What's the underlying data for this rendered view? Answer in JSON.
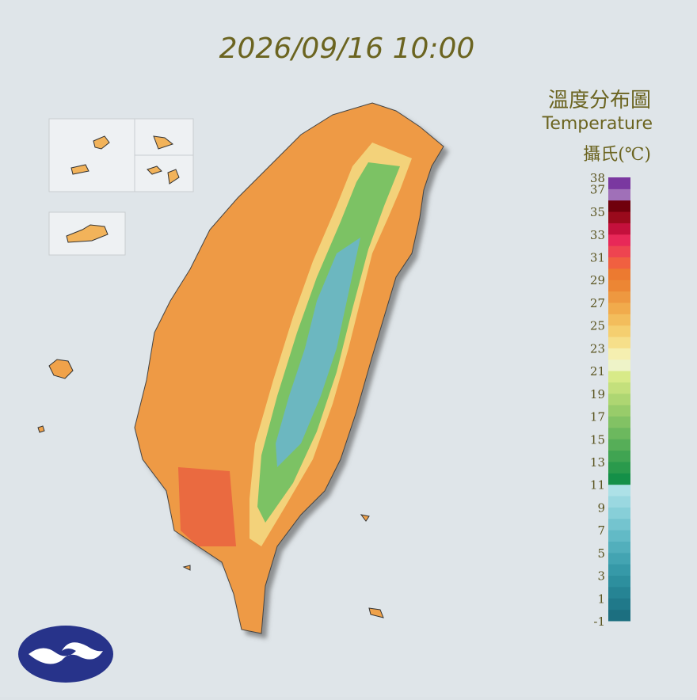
{
  "header": {
    "timestamp": "2026/09/16 10:00"
  },
  "legend": {
    "title": "溫度分布圖",
    "subtitle": "Temperature",
    "unit": "攝氏(℃)",
    "ticks": [
      38,
      37,
      35,
      33,
      31,
      29,
      27,
      25,
      23,
      21,
      19,
      17,
      15,
      13,
      11,
      9,
      7,
      5,
      3,
      1,
      -1
    ],
    "colors": [
      "#1c6f80",
      "#20798a",
      "#268494",
      "#2d8f9e",
      "#3699a8",
      "#43a4b2",
      "#52afbc",
      "#62bac6",
      "#74c4cf",
      "#87cfd8",
      "#9ad8e0",
      "#ade1e7",
      "#149048",
      "#2a9a4c",
      "#40a452",
      "#56ae58",
      "#6cb85e",
      "#82c264",
      "#98cc6a",
      "#aed672",
      "#c4e07c",
      "#d8ea88",
      "#eef3c8",
      "#f5efb0",
      "#f6df8a",
      "#f5cf70",
      "#f3bd5c",
      "#f1ab4c",
      "#ee9840",
      "#ec8634",
      "#ec7a30",
      "#f06040",
      "#ee4450",
      "#e82858",
      "#c4103c",
      "#9a0a1c",
      "#70000c",
      "#a070b8",
      "#7a38a0"
    ]
  }
}
